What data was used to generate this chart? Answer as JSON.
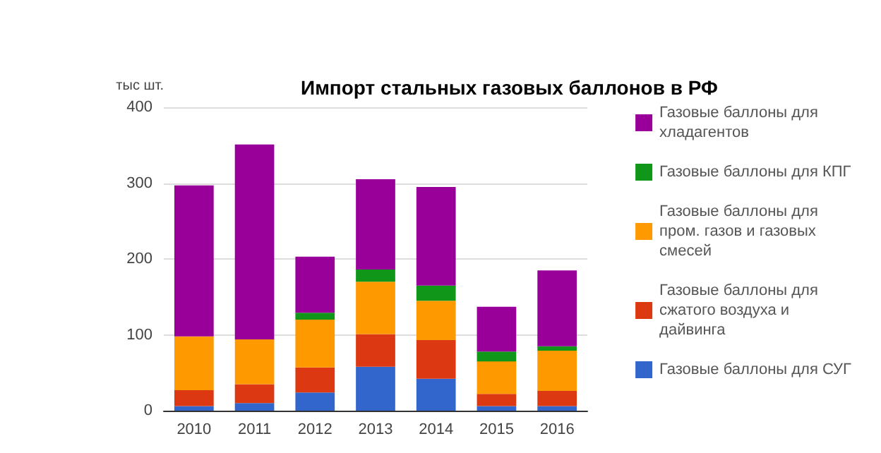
{
  "chart_data": {
    "type": "bar",
    "title": "Импорт стальных газовых баллонов в РФ",
    "ylabel": "тыс шт.",
    "categories": [
      "2010",
      "2011",
      "2012",
      "2013",
      "2014",
      "2015",
      "2016"
    ],
    "stacked": true,
    "ylim": [
      0,
      400
    ],
    "yticks": [
      0,
      100,
      200,
      300,
      400
    ],
    "grid": "y",
    "legend": "right",
    "series": [
      {
        "name": "Газовые баллоны для СУГ",
        "color": "#3366cc",
        "values": [
          6,
          10,
          24,
          58,
          42,
          6,
          6
        ]
      },
      {
        "name": "Газовые баллоны для сжатого воздуха и дайвинга",
        "color": "#dc3912",
        "values": [
          21,
          25,
          33,
          43,
          51,
          16,
          20
        ]
      },
      {
        "name": "Газовые баллоны для пром. газов и газовых смесей",
        "color": "#ff9900",
        "values": [
          71,
          59,
          63,
          69,
          52,
          43,
          53
        ]
      },
      {
        "name": "Газовые баллоны для КПГ",
        "color": "#109618",
        "values": [
          0,
          0,
          9,
          16,
          20,
          13,
          6
        ]
      },
      {
        "name": "Газовые баллоны для хладагентов",
        "color": "#990099",
        "values": [
          199,
          257,
          74,
          119,
          130,
          59,
          100
        ]
      }
    ]
  }
}
